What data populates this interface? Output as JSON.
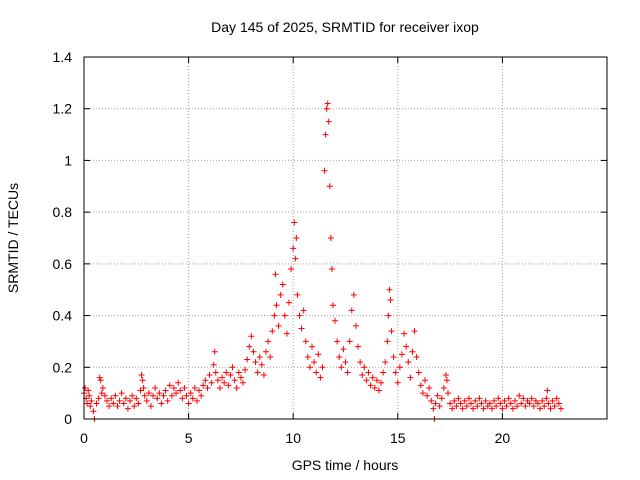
{
  "chart_data": {
    "type": "scatter",
    "title": "Day 145 of 2025, SRMTID for receiver ixop",
    "xlabel": "GPS time / hours",
    "ylabel": "SRMTID / TECUs",
    "xlim": [
      0,
      25
    ],
    "ylim": [
      0,
      1.4
    ],
    "xticks": [
      0,
      5,
      10,
      15,
      20
    ],
    "yticks": [
      0,
      0.2,
      0.4,
      0.6,
      0.8,
      1,
      1.2,
      1.4
    ],
    "xtick_labels": [
      "0",
      "5",
      "10",
      "15",
      "20"
    ],
    "ytick_labels": [
      "0",
      "0.2",
      "0.4",
      "0.6",
      "0.8",
      "1",
      "1.2",
      "1.4"
    ],
    "grid": true,
    "legend": "none",
    "marker": "+",
    "series": [
      {
        "name": "SRMTID",
        "color": "#ff0000",
        "points": [
          [
            0.0,
            0.1
          ],
          [
            0.05,
            0.12
          ],
          [
            0.1,
            0.08
          ],
          [
            0.15,
            0.06
          ],
          [
            0.2,
            0.11
          ],
          [
            0.25,
            0.09
          ],
          [
            0.3,
            0.05
          ],
          [
            0.35,
            0.07
          ],
          [
            0.45,
            0.03
          ],
          [
            0.5,
            0.0
          ],
          [
            0.6,
            0.06
          ],
          [
            0.7,
            0.08
          ],
          [
            0.75,
            0.16
          ],
          [
            0.8,
            0.15
          ],
          [
            0.85,
            0.1
          ],
          [
            0.9,
            0.12
          ],
          [
            1.0,
            0.09
          ],
          [
            1.1,
            0.07
          ],
          [
            1.2,
            0.05
          ],
          [
            1.3,
            0.08
          ],
          [
            1.4,
            0.06
          ],
          [
            1.5,
            0.09
          ],
          [
            1.6,
            0.05
          ],
          [
            1.7,
            0.07
          ],
          [
            1.8,
            0.1
          ],
          [
            1.9,
            0.06
          ],
          [
            2.0,
            0.08
          ],
          [
            2.1,
            0.04
          ],
          [
            2.2,
            0.07
          ],
          [
            2.3,
            0.09
          ],
          [
            2.4,
            0.05
          ],
          [
            2.5,
            0.08
          ],
          [
            2.6,
            0.06
          ],
          [
            2.7,
            0.11
          ],
          [
            2.75,
            0.17
          ],
          [
            2.8,
            0.15
          ],
          [
            2.85,
            0.12
          ],
          [
            2.9,
            0.09
          ],
          [
            3.0,
            0.07
          ],
          [
            3.1,
            0.1
          ],
          [
            3.2,
            0.05
          ],
          [
            3.3,
            0.09
          ],
          [
            3.4,
            0.12
          ],
          [
            3.5,
            0.08
          ],
          [
            3.6,
            0.1
          ],
          [
            3.7,
            0.06
          ],
          [
            3.8,
            0.09
          ],
          [
            3.9,
            0.11
          ],
          [
            4.0,
            0.07
          ],
          [
            4.1,
            0.13
          ],
          [
            4.2,
            0.09
          ],
          [
            4.3,
            0.12
          ],
          [
            4.4,
            0.1
          ],
          [
            4.5,
            0.14
          ],
          [
            4.6,
            0.11
          ],
          [
            4.7,
            0.08
          ],
          [
            4.8,
            0.12
          ],
          [
            4.9,
            0.09
          ],
          [
            5.0,
            0.06
          ],
          [
            5.1,
            0.1
          ],
          [
            5.2,
            0.08
          ],
          [
            5.3,
            0.12
          ],
          [
            5.4,
            0.07
          ],
          [
            5.5,
            0.11
          ],
          [
            5.6,
            0.09
          ],
          [
            5.7,
            0.13
          ],
          [
            5.8,
            0.15
          ],
          [
            5.9,
            0.12
          ],
          [
            6.0,
            0.17
          ],
          [
            6.1,
            0.14
          ],
          [
            6.2,
            0.21
          ],
          [
            6.25,
            0.26
          ],
          [
            6.3,
            0.18
          ],
          [
            6.4,
            0.15
          ],
          [
            6.5,
            0.12
          ],
          [
            6.6,
            0.16
          ],
          [
            6.7,
            0.14
          ],
          [
            6.8,
            0.18
          ],
          [
            6.9,
            0.13
          ],
          [
            7.0,
            0.17
          ],
          [
            7.1,
            0.2
          ],
          [
            7.2,
            0.15
          ],
          [
            7.3,
            0.12
          ],
          [
            7.4,
            0.18
          ],
          [
            7.5,
            0.16
          ],
          [
            7.6,
            0.14
          ],
          [
            7.7,
            0.19
          ],
          [
            7.8,
            0.23
          ],
          [
            7.9,
            0.28
          ],
          [
            8.0,
            0.32
          ],
          [
            8.1,
            0.26
          ],
          [
            8.2,
            0.22
          ],
          [
            8.3,
            0.18
          ],
          [
            8.4,
            0.24
          ],
          [
            8.5,
            0.21
          ],
          [
            8.6,
            0.17
          ],
          [
            8.7,
            0.26
          ],
          [
            8.8,
            0.3
          ],
          [
            8.9,
            0.24
          ],
          [
            9.0,
            0.34
          ],
          [
            9.1,
            0.4
          ],
          [
            9.15,
            0.56
          ],
          [
            9.2,
            0.44
          ],
          [
            9.3,
            0.36
          ],
          [
            9.4,
            0.48
          ],
          [
            9.5,
            0.52
          ],
          [
            9.6,
            0.4
          ],
          [
            9.7,
            0.33
          ],
          [
            9.8,
            0.45
          ],
          [
            9.9,
            0.58
          ],
          [
            10.0,
            0.66
          ],
          [
            10.05,
            0.76
          ],
          [
            10.1,
            0.62
          ],
          [
            10.15,
            0.7
          ],
          [
            10.2,
            0.48
          ],
          [
            10.3,
            0.4
          ],
          [
            10.4,
            0.35
          ],
          [
            10.5,
            0.42
          ],
          [
            10.6,
            0.3
          ],
          [
            10.7,
            0.24
          ],
          [
            10.8,
            0.2
          ],
          [
            10.9,
            0.28
          ],
          [
            11.0,
            0.22
          ],
          [
            11.1,
            0.18
          ],
          [
            11.2,
            0.25
          ],
          [
            11.3,
            0.16
          ],
          [
            11.4,
            0.2
          ],
          [
            11.5,
            0.96
          ],
          [
            11.55,
            1.1
          ],
          [
            11.6,
            1.2
          ],
          [
            11.65,
            1.22
          ],
          [
            11.7,
            1.15
          ],
          [
            11.75,
            0.9
          ],
          [
            11.8,
            0.7
          ],
          [
            11.85,
            0.58
          ],
          [
            11.9,
            0.44
          ],
          [
            12.0,
            0.38
          ],
          [
            12.1,
            0.3
          ],
          [
            12.2,
            0.24
          ],
          [
            12.3,
            0.2
          ],
          [
            12.4,
            0.27
          ],
          [
            12.5,
            0.22
          ],
          [
            12.6,
            0.18
          ],
          [
            12.7,
            0.3
          ],
          [
            12.8,
            0.42
          ],
          [
            12.9,
            0.48
          ],
          [
            13.0,
            0.36
          ],
          [
            13.1,
            0.28
          ],
          [
            13.2,
            0.22
          ],
          [
            13.3,
            0.17
          ],
          [
            13.4,
            0.2
          ],
          [
            13.5,
            0.15
          ],
          [
            13.6,
            0.18
          ],
          [
            13.7,
            0.13
          ],
          [
            13.8,
            0.16
          ],
          [
            13.9,
            0.12
          ],
          [
            14.0,
            0.15
          ],
          [
            14.1,
            0.11
          ],
          [
            14.2,
            0.14
          ],
          [
            14.3,
            0.18
          ],
          [
            14.4,
            0.22
          ],
          [
            14.5,
            0.3
          ],
          [
            14.55,
            0.4
          ],
          [
            14.6,
            0.5
          ],
          [
            14.65,
            0.46
          ],
          [
            14.7,
            0.34
          ],
          [
            14.8,
            0.24
          ],
          [
            14.9,
            0.18
          ],
          [
            15.0,
            0.14
          ],
          [
            15.1,
            0.2
          ],
          [
            15.2,
            0.25
          ],
          [
            15.3,
            0.33
          ],
          [
            15.4,
            0.28
          ],
          [
            15.5,
            0.22
          ],
          [
            15.6,
            0.16
          ],
          [
            15.7,
            0.26
          ],
          [
            15.8,
            0.34
          ],
          [
            15.9,
            0.24
          ],
          [
            16.0,
            0.18
          ],
          [
            16.1,
            0.13
          ],
          [
            16.2,
            0.1
          ],
          [
            16.3,
            0.15
          ],
          [
            16.4,
            0.09
          ],
          [
            16.5,
            0.12
          ],
          [
            16.6,
            0.07
          ],
          [
            16.7,
            0.04
          ],
          [
            16.75,
            0.0
          ],
          [
            16.8,
            0.06
          ],
          [
            16.9,
            0.09
          ],
          [
            17.0,
            0.05
          ],
          [
            17.1,
            0.08
          ],
          [
            17.2,
            0.12
          ],
          [
            17.3,
            0.17
          ],
          [
            17.35,
            0.15
          ],
          [
            17.4,
            0.1
          ],
          [
            17.5,
            0.06
          ],
          [
            17.6,
            0.04
          ],
          [
            17.7,
            0.07
          ],
          [
            17.8,
            0.05
          ],
          [
            17.9,
            0.08
          ],
          [
            18.0,
            0.06
          ],
          [
            18.1,
            0.04
          ],
          [
            18.2,
            0.07
          ],
          [
            18.3,
            0.05
          ],
          [
            18.4,
            0.08
          ],
          [
            18.5,
            0.06
          ],
          [
            18.6,
            0.04
          ],
          [
            18.7,
            0.07
          ],
          [
            18.8,
            0.05
          ],
          [
            18.9,
            0.08
          ],
          [
            19.0,
            0.06
          ],
          [
            19.1,
            0.04
          ],
          [
            19.2,
            0.07
          ],
          [
            19.3,
            0.05
          ],
          [
            19.4,
            0.06
          ],
          [
            19.5,
            0.04
          ],
          [
            19.6,
            0.07
          ],
          [
            19.7,
            0.05
          ],
          [
            19.8,
            0.08
          ],
          [
            19.9,
            0.06
          ],
          [
            20.0,
            0.04
          ],
          [
            20.1,
            0.07
          ],
          [
            20.2,
            0.05
          ],
          [
            20.3,
            0.08
          ],
          [
            20.4,
            0.06
          ],
          [
            20.5,
            0.04
          ],
          [
            20.6,
            0.07
          ],
          [
            20.7,
            0.05
          ],
          [
            20.8,
            0.09
          ],
          [
            20.9,
            0.06
          ],
          [
            21.0,
            0.08
          ],
          [
            21.1,
            0.05
          ],
          [
            21.2,
            0.07
          ],
          [
            21.3,
            0.06
          ],
          [
            21.4,
            0.08
          ],
          [
            21.5,
            0.05
          ],
          [
            21.6,
            0.07
          ],
          [
            21.7,
            0.06
          ],
          [
            21.8,
            0.04
          ],
          [
            21.9,
            0.07
          ],
          [
            22.0,
            0.05
          ],
          [
            22.1,
            0.08
          ],
          [
            22.15,
            0.11
          ],
          [
            22.2,
            0.06
          ],
          [
            22.3,
            0.04
          ],
          [
            22.4,
            0.07
          ],
          [
            22.5,
            0.05
          ],
          [
            22.6,
            0.08
          ],
          [
            22.7,
            0.06
          ],
          [
            22.8,
            0.04
          ]
        ]
      }
    ]
  },
  "colors": {
    "series": "#ff0000",
    "grid": "#a0a0a0",
    "axis": "#000000",
    "background": "#ffffff"
  }
}
